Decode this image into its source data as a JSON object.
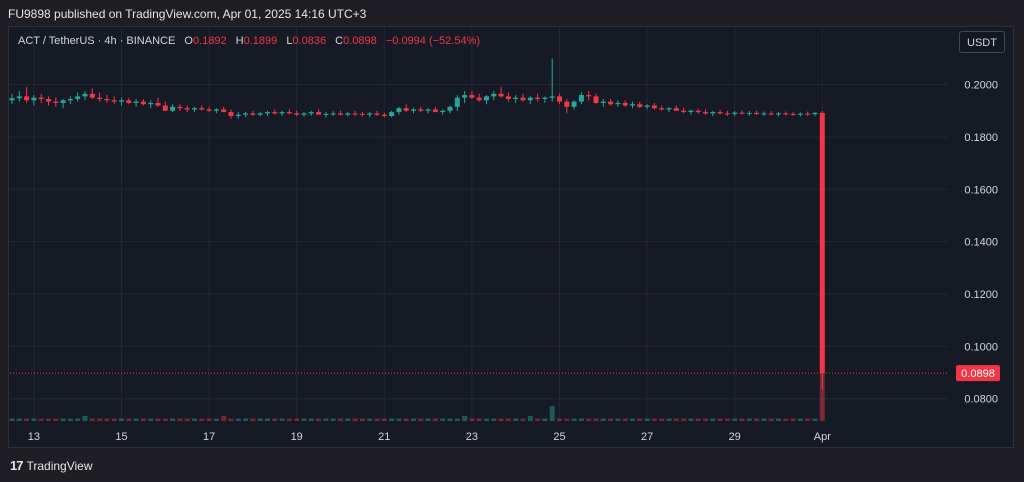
{
  "header": {
    "published_line": "FU9898 published on TradingView.com, Apr 01, 2025 14:16 UTC+3"
  },
  "legend": {
    "symbol": "ACT / TetherUS · 4h · BINANCE",
    "o_key": "O",
    "o_val": "0.1892",
    "h_key": "H",
    "h_val": "0.1899",
    "l_key": "L",
    "l_val": "0.0836",
    "c_key": "C",
    "c_val": "0.0898",
    "change": "−0.0994 (−52.54%)"
  },
  "currency_button": "USDT",
  "footer": {
    "brand": "TradingView",
    "logo": "17"
  },
  "colors": {
    "up": "#26a69a",
    "down": "#f23645",
    "price_tag": "#f23645"
  },
  "chart_data": {
    "type": "candlestick",
    "title": "ACT / TetherUS · 4h · BINANCE",
    "y_ticks": [
      "0.2000",
      "0.1800",
      "0.1600",
      "0.1400",
      "0.1200",
      "0.1000",
      "0.0800"
    ],
    "ylim": [
      0.0715,
      0.222
    ],
    "x_ticks": [
      {
        "label": "13",
        "index": 3
      },
      {
        "label": "15",
        "index": 15
      },
      {
        "label": "17",
        "index": 27
      },
      {
        "label": "19",
        "index": 39
      },
      {
        "label": "21",
        "index": 51
      },
      {
        "label": "23",
        "index": 63
      },
      {
        "label": "25",
        "index": 75
      },
      {
        "label": "27",
        "index": 87
      },
      {
        "label": "29",
        "index": 99
      },
      {
        "label": "Apr",
        "index": 111
      }
    ],
    "last_price": "0.0898",
    "ohlc": [
      [
        0.194,
        0.1965,
        0.1925,
        0.1948
      ],
      [
        0.1948,
        0.1975,
        0.1935,
        0.1955
      ],
      [
        0.1955,
        0.199,
        0.193,
        0.194
      ],
      [
        0.194,
        0.196,
        0.192,
        0.195
      ],
      [
        0.195,
        0.1965,
        0.193,
        0.1945
      ],
      [
        0.1945,
        0.1955,
        0.192,
        0.1935
      ],
      [
        0.1935,
        0.195,
        0.1915,
        0.193
      ],
      [
        0.193,
        0.1945,
        0.191,
        0.194
      ],
      [
        0.194,
        0.1955,
        0.1925,
        0.1945
      ],
      [
        0.1945,
        0.197,
        0.1935,
        0.1955
      ],
      [
        0.1955,
        0.1975,
        0.194,
        0.1965
      ],
      [
        0.1965,
        0.1985,
        0.1945,
        0.195
      ],
      [
        0.195,
        0.197,
        0.1935,
        0.1945
      ],
      [
        0.1945,
        0.196,
        0.193,
        0.194
      ],
      [
        0.194,
        0.1955,
        0.1925,
        0.1935
      ],
      [
        0.1935,
        0.195,
        0.192,
        0.194
      ],
      [
        0.194,
        0.195,
        0.1925,
        0.193
      ],
      [
        0.193,
        0.1945,
        0.1915,
        0.1935
      ],
      [
        0.1935,
        0.1945,
        0.192,
        0.1925
      ],
      [
        0.1925,
        0.194,
        0.191,
        0.193
      ],
      [
        0.193,
        0.195,
        0.1915,
        0.192
      ],
      [
        0.192,
        0.1935,
        0.1905,
        0.19
      ],
      [
        0.19,
        0.1925,
        0.1895,
        0.1915
      ],
      [
        0.1915,
        0.1925,
        0.19,
        0.191
      ],
      [
        0.191,
        0.192,
        0.1895,
        0.1905
      ],
      [
        0.1905,
        0.1915,
        0.1895,
        0.191
      ],
      [
        0.191,
        0.192,
        0.19,
        0.1905
      ],
      [
        0.1905,
        0.1915,
        0.1895,
        0.19
      ],
      [
        0.19,
        0.191,
        0.189,
        0.1905
      ],
      [
        0.1905,
        0.1915,
        0.1895,
        0.1895
      ],
      [
        0.1895,
        0.1905,
        0.187,
        0.188
      ],
      [
        0.188,
        0.1895,
        0.187,
        0.1885
      ],
      [
        0.1885,
        0.1895,
        0.1875,
        0.189
      ],
      [
        0.189,
        0.19,
        0.188,
        0.1885
      ],
      [
        0.1885,
        0.1895,
        0.1878,
        0.189
      ],
      [
        0.189,
        0.19,
        0.188,
        0.1895
      ],
      [
        0.1895,
        0.1905,
        0.1885,
        0.189
      ],
      [
        0.189,
        0.19,
        0.188,
        0.1895
      ],
      [
        0.1895,
        0.1905,
        0.1885,
        0.189
      ],
      [
        0.189,
        0.19,
        0.188,
        0.1885
      ],
      [
        0.1885,
        0.1895,
        0.1878,
        0.189
      ],
      [
        0.189,
        0.19,
        0.1882,
        0.1895
      ],
      [
        0.1895,
        0.1905,
        0.1885,
        0.1885
      ],
      [
        0.1885,
        0.1895,
        0.1875,
        0.1888
      ],
      [
        0.1888,
        0.1898,
        0.188,
        0.189
      ],
      [
        0.189,
        0.19,
        0.1882,
        0.1885
      ],
      [
        0.1885,
        0.1895,
        0.1878,
        0.189
      ],
      [
        0.189,
        0.19,
        0.188,
        0.1888
      ],
      [
        0.1888,
        0.1895,
        0.1878,
        0.1885
      ],
      [
        0.1885,
        0.1895,
        0.1875,
        0.189
      ],
      [
        0.189,
        0.19,
        0.188,
        0.1885
      ],
      [
        0.1885,
        0.1893,
        0.1875,
        0.188
      ],
      [
        0.188,
        0.19,
        0.1875,
        0.1895
      ],
      [
        0.1895,
        0.1915,
        0.1885,
        0.191
      ],
      [
        0.191,
        0.1925,
        0.1895,
        0.19
      ],
      [
        0.19,
        0.1912,
        0.189,
        0.1905
      ],
      [
        0.1905,
        0.1915,
        0.1895,
        0.19
      ],
      [
        0.19,
        0.191,
        0.189,
        0.1905
      ],
      [
        0.1905,
        0.1915,
        0.1895,
        0.1895
      ],
      [
        0.1895,
        0.1905,
        0.1885,
        0.19
      ],
      [
        0.19,
        0.192,
        0.189,
        0.1915
      ],
      [
        0.1915,
        0.196,
        0.19,
        0.195
      ],
      [
        0.195,
        0.1975,
        0.193,
        0.196
      ],
      [
        0.196,
        0.1975,
        0.1945,
        0.195
      ],
      [
        0.195,
        0.1965,
        0.1935,
        0.194
      ],
      [
        0.194,
        0.196,
        0.1925,
        0.1955
      ],
      [
        0.1955,
        0.1975,
        0.194,
        0.1965
      ],
      [
        0.1965,
        0.199,
        0.195,
        0.1955
      ],
      [
        0.1955,
        0.197,
        0.1935,
        0.1945
      ],
      [
        0.1945,
        0.196,
        0.193,
        0.195
      ],
      [
        0.195,
        0.1965,
        0.1935,
        0.194
      ],
      [
        0.194,
        0.1955,
        0.1925,
        0.195
      ],
      [
        0.195,
        0.1965,
        0.1935,
        0.1945
      ],
      [
        0.1945,
        0.1955,
        0.193,
        0.195
      ],
      [
        0.195,
        0.21,
        0.1935,
        0.1955
      ],
      [
        0.1955,
        0.1965,
        0.1925,
        0.1935
      ],
      [
        0.1935,
        0.1945,
        0.189,
        0.1915
      ],
      [
        0.1915,
        0.194,
        0.1905,
        0.1935
      ],
      [
        0.1935,
        0.197,
        0.1925,
        0.196
      ],
      [
        0.196,
        0.1975,
        0.194,
        0.1955
      ],
      [
        0.1955,
        0.1965,
        0.1925,
        0.193
      ],
      [
        0.193,
        0.1945,
        0.1915,
        0.1935
      ],
      [
        0.1935,
        0.1945,
        0.192,
        0.1925
      ],
      [
        0.1925,
        0.194,
        0.1915,
        0.193
      ],
      [
        0.193,
        0.194,
        0.1915,
        0.192
      ],
      [
        0.192,
        0.1935,
        0.191,
        0.1925
      ],
      [
        0.1925,
        0.1935,
        0.191,
        0.1915
      ],
      [
        0.1915,
        0.1925,
        0.1905,
        0.192
      ],
      [
        0.192,
        0.193,
        0.1905,
        0.191
      ],
      [
        0.191,
        0.192,
        0.19,
        0.1905
      ],
      [
        0.1905,
        0.1915,
        0.1895,
        0.191
      ],
      [
        0.191,
        0.192,
        0.19,
        0.19
      ],
      [
        0.19,
        0.1912,
        0.189,
        0.1895
      ],
      [
        0.1895,
        0.1905,
        0.1885,
        0.19
      ],
      [
        0.19,
        0.1908,
        0.1888,
        0.1895
      ],
      [
        0.1895,
        0.1905,
        0.1885,
        0.189
      ],
      [
        0.189,
        0.19,
        0.188,
        0.1895
      ],
      [
        0.1895,
        0.1903,
        0.1885,
        0.189
      ],
      [
        0.189,
        0.19,
        0.188,
        0.1888
      ],
      [
        0.1888,
        0.1898,
        0.188,
        0.1893
      ],
      [
        0.1893,
        0.1902,
        0.1885,
        0.189
      ],
      [
        0.189,
        0.19,
        0.188,
        0.1892
      ],
      [
        0.1892,
        0.19,
        0.1884,
        0.1888
      ],
      [
        0.1888,
        0.1897,
        0.188,
        0.189
      ],
      [
        0.189,
        0.1898,
        0.1882,
        0.1886
      ],
      [
        0.1886,
        0.1895,
        0.1878,
        0.189
      ],
      [
        0.189,
        0.1897,
        0.1882,
        0.1888
      ],
      [
        0.1888,
        0.1895,
        0.188,
        0.1885
      ],
      [
        0.1885,
        0.1893,
        0.1878,
        0.1889
      ],
      [
        0.1889,
        0.1897,
        0.188,
        0.1887
      ],
      [
        0.1887,
        0.1895,
        0.188,
        0.1892
      ],
      [
        0.1892,
        0.1899,
        0.0836,
        0.0898
      ]
    ],
    "volume": [
      1,
      1,
      1,
      1,
      1,
      1,
      1,
      1,
      1,
      1,
      2,
      1,
      1,
      1,
      1,
      1,
      1,
      1,
      1,
      1,
      1,
      1,
      1,
      1,
      1,
      1,
      1,
      1,
      1,
      2,
      1,
      1,
      1,
      1,
      1,
      1,
      1,
      1,
      1,
      1,
      1,
      1,
      1,
      1,
      1,
      1,
      1,
      1,
      1,
      1,
      1,
      1,
      1,
      1,
      1,
      1,
      1,
      1,
      1,
      1,
      1,
      1,
      2,
      1,
      1,
      1,
      1,
      1,
      1,
      1,
      1,
      2,
      1,
      1,
      6,
      1,
      1,
      1,
      1,
      1,
      1,
      1,
      1,
      1,
      1,
      1,
      1,
      1,
      1,
      1,
      1,
      1,
      1,
      1,
      1,
      1,
      1,
      1,
      1,
      1,
      1,
      1,
      1,
      1,
      1,
      1,
      1,
      1,
      1,
      1,
      1,
      40
    ]
  }
}
